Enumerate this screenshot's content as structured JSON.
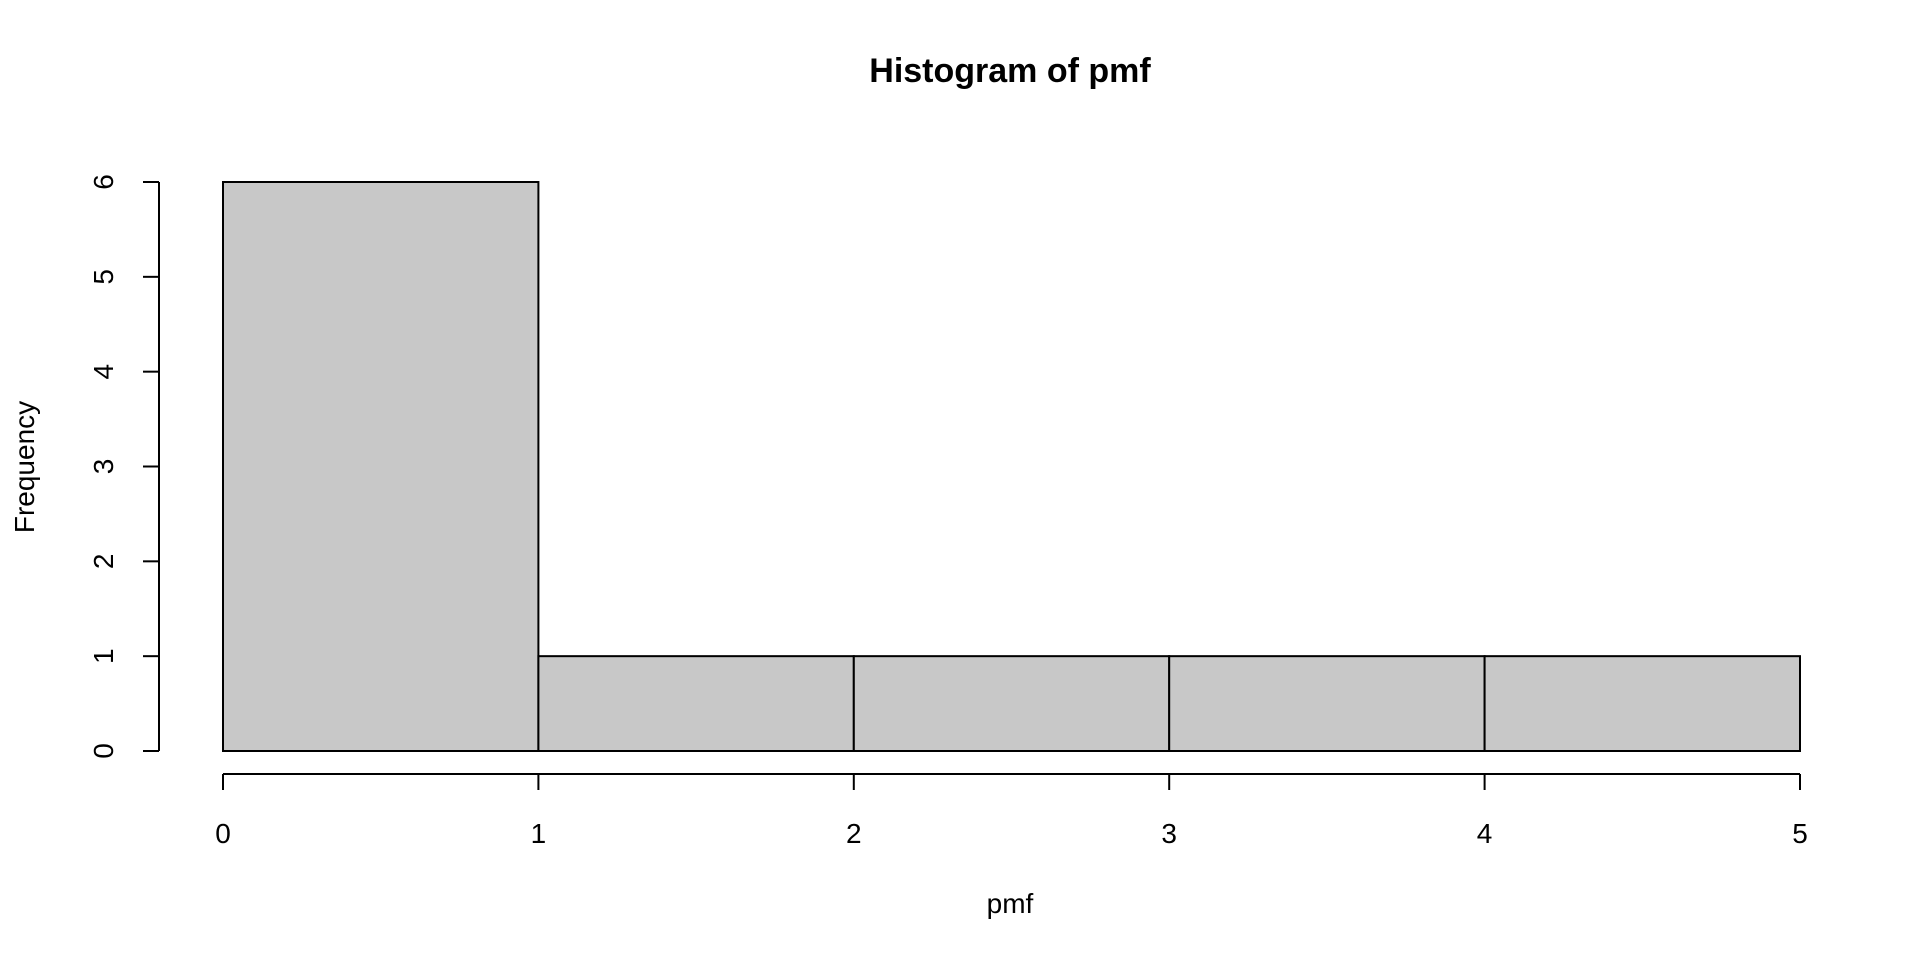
{
  "chart_data": {
    "type": "bar",
    "title": "Histogram of pmf",
    "xlabel": "pmf",
    "ylabel": "Frequency",
    "bins": [
      {
        "x0": 0,
        "x1": 1,
        "count": 6
      },
      {
        "x0": 1,
        "x1": 2,
        "count": 1
      },
      {
        "x0": 2,
        "x1": 3,
        "count": 1
      },
      {
        "x0": 3,
        "x1": 4,
        "count": 1
      },
      {
        "x0": 4,
        "x1": 5,
        "count": 1
      }
    ],
    "xlim": [
      0,
      5
    ],
    "ylim": [
      0,
      6
    ],
    "x_ticks": [
      "0",
      "1",
      "2",
      "3",
      "4",
      "5"
    ],
    "y_ticks": [
      "0",
      "1",
      "2",
      "3",
      "4",
      "5",
      "6"
    ],
    "grid": false,
    "bar_color": "#c8c8c8",
    "border_color": "#000000"
  }
}
